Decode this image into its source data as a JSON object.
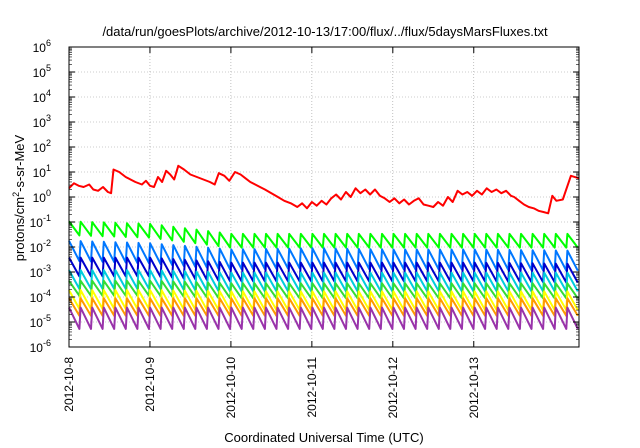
{
  "chart_data": {
    "type": "line",
    "title": "/data/run/goesPlots/archive/2012-10-13/17:00/flux/../flux/5daysMarsFluxes.txt",
    "xlabel": "Coordinated Universal Time (UTC)",
    "ylabel": "protons/cm2-s-sr-MeV",
    "ylabel_parts": {
      "a": "protons/cm",
      "sup": "2",
      "b": "-s-sr-MeV"
    },
    "yscale": "log",
    "ylim_exp": [
      -6,
      6
    ],
    "y_ticks": [
      {
        "base": "10",
        "exp": "-6"
      },
      {
        "base": "10",
        "exp": "-5"
      },
      {
        "base": "10",
        "exp": "-4"
      },
      {
        "base": "10",
        "exp": "-3"
      },
      {
        "base": "10",
        "exp": "-2"
      },
      {
        "base": "10",
        "exp": "-1"
      },
      {
        "base": "10",
        "exp": "0"
      },
      {
        "base": "10",
        "exp": "1"
      },
      {
        "base": "10",
        "exp": "2"
      },
      {
        "base": "10",
        "exp": "3"
      },
      {
        "base": "10",
        "exp": "4"
      },
      {
        "base": "10",
        "exp": "5"
      },
      {
        "base": "10",
        "exp": "6"
      }
    ],
    "x_ticks": [
      "2012-10-8",
      "2012-10-9",
      "2012-10-10",
      "2012-10-11",
      "2012-10-12",
      "2012-10-13"
    ],
    "xlim": [
      "2012-10-08 00:00",
      "2012-10-13 18:00"
    ],
    "grid": true,
    "legend": "none",
    "series": [
      {
        "color": "#ff0000",
        "values_log10": [
          0.35,
          0.55,
          0.45,
          0.4,
          0.5,
          0.3,
          0.25,
          0.4,
          0.2,
          0.15,
          1.1,
          1.0,
          0.8,
          0.7,
          0.6,
          0.5,
          0.65,
          0.45,
          0.4,
          0.8,
          0.6,
          1.05,
          0.9,
          0.7,
          1.25,
          1.1,
          0.9,
          0.8,
          0.7,
          0.6,
          0.5,
          0.95,
          0.85,
          0.65,
          1.0,
          0.9,
          0.75,
          0.6,
          0.5,
          0.4,
          0.3,
          0.15,
          0.0,
          -0.15,
          -0.25,
          -0.4,
          -0.25,
          -0.45,
          -0.2,
          -0.35,
          -0.15,
          -0.3,
          -0.05,
          0.1,
          -0.1,
          0.2,
          0.0,
          0.35,
          0.15,
          0.3,
          0.1,
          0.3,
          0.05,
          -0.05,
          -0.2,
          -0.05,
          -0.25,
          -0.1,
          -0.3,
          -0.15,
          -0.05,
          -0.3,
          -0.35,
          -0.4,
          -0.2,
          -0.35,
          0.0,
          -0.2,
          0.25,
          0.1,
          0.2,
          0.05,
          0.25,
          0.1,
          0.35,
          0.2,
          0.3,
          0.15,
          0.25,
          0.05,
          0.0,
          -0.15,
          -0.3,
          -0.4,
          -0.45,
          -0.55,
          -0.6,
          -0.65,
          0.05,
          -0.15,
          -0.1,
          0.85,
          0.75
        ],
        "x_days": [
          0.0,
          0.06,
          0.12,
          0.18,
          0.25,
          0.3,
          0.36,
          0.42,
          0.48,
          0.52,
          0.55,
          0.62,
          0.7,
          0.76,
          0.82,
          0.9,
          0.95,
          1.0,
          1.05,
          1.1,
          1.15,
          1.2,
          1.25,
          1.3,
          1.35,
          1.42,
          1.5,
          1.58,
          1.66,
          1.74,
          1.8,
          1.85,
          1.92,
          1.98,
          2.05,
          2.12,
          2.18,
          2.24,
          2.3,
          2.36,
          2.42,
          2.5,
          2.58,
          2.66,
          2.74,
          2.82,
          2.88,
          2.94,
          3.0,
          3.06,
          3.12,
          3.18,
          3.24,
          3.3,
          3.36,
          3.42,
          3.48,
          3.54,
          3.6,
          3.66,
          3.72,
          3.78,
          3.84,
          3.9,
          3.96,
          4.02,
          4.08,
          4.14,
          4.2,
          4.26,
          4.32,
          4.38,
          4.44,
          4.5,
          4.56,
          4.62,
          4.68,
          4.74,
          4.8,
          4.86,
          4.92,
          4.98,
          5.04,
          5.1,
          5.16,
          5.22,
          5.28,
          5.34,
          5.4,
          5.46,
          5.5,
          5.56,
          5.62,
          5.68,
          5.74,
          5.8,
          5.86,
          5.92,
          5.97,
          6.02,
          6.1,
          6.2,
          6.3
        ]
      },
      {
        "color": "#00ff00",
        "base_log10": -1.7,
        "amp": 0.55,
        "teeth": 44,
        "drift": [
          [
            0,
            0.45
          ],
          [
            1.0,
            0.35
          ],
          [
            2.0,
            -0.05
          ],
          [
            3.0,
            -0.05
          ],
          [
            4.0,
            -0.05
          ],
          [
            5.0,
            -0.05
          ],
          [
            6.3,
            -0.05
          ]
        ]
      },
      {
        "color": "#0077ff",
        "base_log10": -2.45,
        "amp": 0.8,
        "teeth": 44,
        "drift": [
          [
            0,
            0.3
          ],
          [
            1.0,
            0.2
          ],
          [
            2.0,
            -0.05
          ],
          [
            3.0,
            0.0
          ],
          [
            4.0,
            -0.05
          ],
          [
            5.0,
            -0.05
          ],
          [
            6.3,
            -0.1
          ]
        ]
      },
      {
        "color": "#0000cc",
        "base_log10": -3.0,
        "amp": 0.75,
        "teeth": 44,
        "drift": [
          [
            0,
            0.2
          ],
          [
            1.0,
            0.2
          ],
          [
            2.0,
            0.0
          ],
          [
            3.0,
            0.0
          ],
          [
            4.0,
            0.0
          ],
          [
            5.0,
            0.0
          ],
          [
            6.3,
            -0.05
          ]
        ]
      },
      {
        "color": "#00ccdd",
        "base_log10": -3.4,
        "amp": 0.75,
        "teeth": 44,
        "drift": [
          [
            0,
            0.1
          ],
          [
            1.0,
            0.1
          ],
          [
            2.0,
            0.0
          ],
          [
            3.0,
            0.0
          ],
          [
            4.0,
            0.0
          ],
          [
            5.0,
            0.0
          ],
          [
            6.3,
            0.0
          ]
        ]
      },
      {
        "color": "#33dd33",
        "base_log10": -3.75,
        "amp": 0.6,
        "teeth": 44,
        "drift": [
          [
            0,
            0.1
          ],
          [
            1.0,
            0.1
          ],
          [
            2.0,
            0.0
          ],
          [
            3.0,
            0.0
          ],
          [
            4.0,
            0.0
          ],
          [
            5.0,
            0.0
          ],
          [
            6.3,
            0.0
          ]
        ]
      },
      {
        "color": "#ffff00",
        "base_log10": -4.15,
        "amp": 0.75,
        "teeth": 44,
        "drift": [
          [
            0,
            0.05
          ],
          [
            1.0,
            0.05
          ],
          [
            2.0,
            0.0
          ],
          [
            3.0,
            0.0
          ],
          [
            4.0,
            0.0
          ],
          [
            5.0,
            0.0
          ],
          [
            6.3,
            0.0
          ]
        ]
      },
      {
        "color": "#ff9900",
        "base_log10": -4.4,
        "amp": 0.7,
        "teeth": 44,
        "drift": [
          [
            0,
            0.0
          ],
          [
            6.3,
            0.0
          ]
        ]
      },
      {
        "color": "#9933aa",
        "base_log10": -4.85,
        "amp": 0.85,
        "teeth": 44,
        "drift": [
          [
            0,
            0.0
          ],
          [
            6.3,
            0.0
          ]
        ]
      }
    ]
  }
}
